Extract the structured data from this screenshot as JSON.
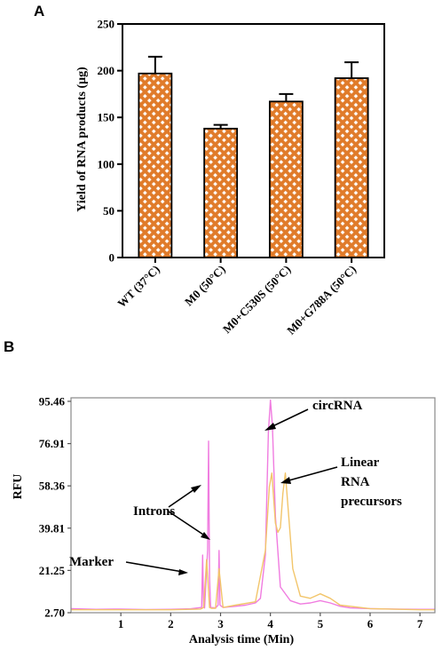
{
  "panel_a_label": "A",
  "panel_b_label": "B",
  "colors": {
    "bar_fill": "#e07b2a",
    "bar_pattern": "#ffffff",
    "axis": "#000000",
    "trace_pink": "#f07ce0",
    "trace_yellow": "#f2c56a"
  },
  "chart_data": [
    {
      "type": "bar",
      "title": "",
      "xlabel": "",
      "ylabel": "Yield of RNA products (μg)",
      "ylim": [
        0,
        250
      ],
      "yticks": [
        0,
        50,
        100,
        150,
        200,
        250
      ],
      "categories": [
        "WT (37°C)",
        "M0 (50°C)",
        "M0+C530S (50°C)",
        "M0+G788A (50°C)"
      ],
      "values": [
        197,
        138,
        167,
        192
      ],
      "error_upper": [
        18,
        4,
        8,
        17
      ],
      "pattern": "crosshatch",
      "grid": false,
      "legend": "none"
    },
    {
      "type": "line",
      "title": "",
      "xlabel": "Analysis time (Min)",
      "ylabel": "RFU",
      "xlim": [
        0,
        7.3
      ],
      "ylim": [
        2.7,
        97
      ],
      "xticks": [
        1,
        2,
        3,
        4,
        5,
        6,
        7
      ],
      "yticks": [
        "2.70",
        "21.25",
        "39.81",
        "58.36",
        "76.91",
        "95.46"
      ],
      "series": [
        {
          "color": "#f07ce0",
          "x": [
            0,
            0.5,
            1,
            1.5,
            2,
            2.4,
            2.62,
            2.64,
            2.66,
            2.68,
            2.74,
            2.76,
            2.78,
            2.8,
            2.9,
            2.95,
            2.97,
            2.99,
            3.05,
            3.3,
            3.5,
            3.7,
            3.8,
            3.9,
            3.96,
            4.0,
            4.04,
            4.1,
            4.2,
            4.4,
            4.6,
            4.8,
            5.0,
            5.2,
            5.4,
            5.6,
            6.0,
            6.5,
            7.0,
            7.3
          ],
          "y": [
            4.5,
            4.2,
            4.3,
            4.1,
            4.2,
            4.4,
            5.0,
            28,
            5.2,
            4.8,
            30,
            78,
            18,
            5.0,
            4.8,
            6.0,
            30,
            6.0,
            5.0,
            5.5,
            6.0,
            7.0,
            9.0,
            28,
            82,
            96,
            85,
            45,
            14,
            8.0,
            6.5,
            7.0,
            8.0,
            7.0,
            5.5,
            4.8,
            4.5,
            4.3,
            4.2,
            4.2
          ]
        },
        {
          "color": "#f2c56a",
          "x": [
            0,
            1,
            2,
            2.6,
            2.66,
            2.72,
            2.78,
            2.82,
            2.9,
            2.97,
            3.05,
            3.3,
            3.7,
            3.9,
            3.98,
            4.03,
            4.1,
            4.15,
            4.2,
            4.25,
            4.3,
            4.35,
            4.45,
            4.6,
            4.8,
            5.0,
            5.2,
            5.4,
            6.0,
            7.0,
            7.3
          ],
          "y": [
            4.0,
            4.0,
            4.0,
            4.3,
            5.0,
            26,
            5.0,
            4.6,
            4.6,
            22,
            5.0,
            6.0,
            7.5,
            30,
            58,
            64,
            42,
            38,
            40,
            55,
            64,
            50,
            22,
            10,
            9.0,
            11,
            9.0,
            6.0,
            4.5,
            4.0,
            4.0
          ]
        }
      ],
      "annotations": [
        "circRNA",
        "Linear",
        "RNA",
        "precursors",
        "Introns",
        "Marker"
      ],
      "grid": false,
      "legend": "none"
    }
  ]
}
